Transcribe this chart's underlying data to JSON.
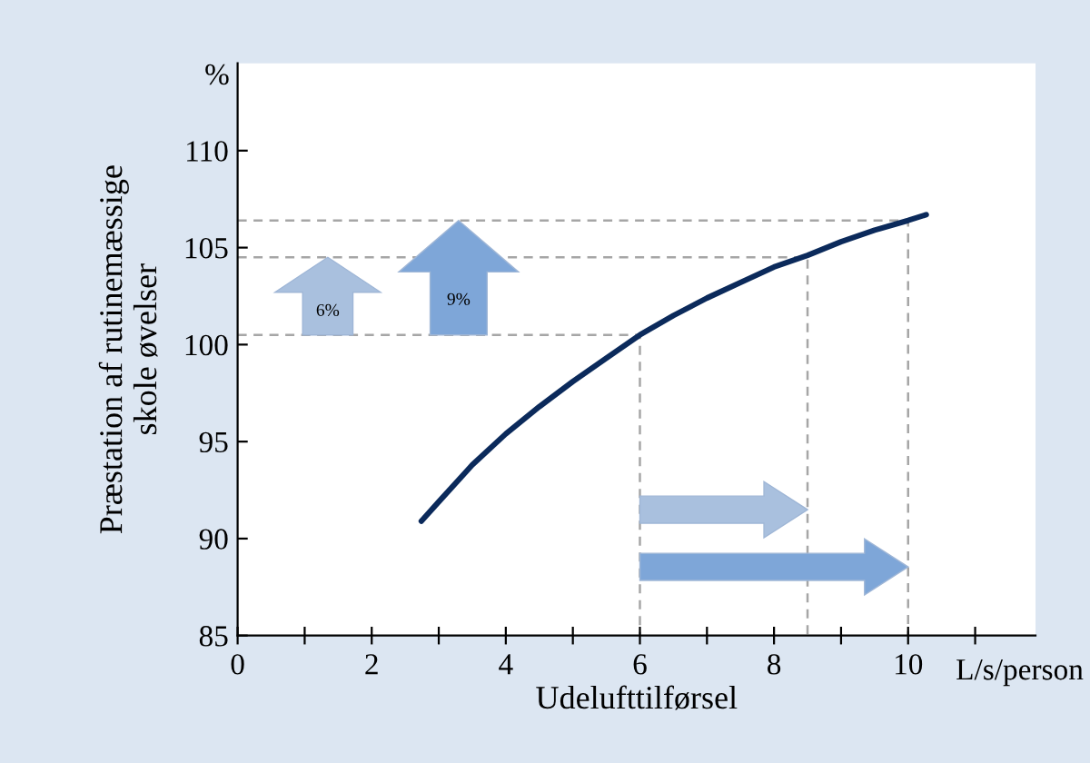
{
  "chart_data": {
    "type": "line",
    "xlabel": "Udelufttilførsel",
    "ylabel": "Præstation af rutinemæssige\nskole øvelser",
    "annotations": [
      "%",
      "L/s/person",
      "6%",
      "9%"
    ],
    "xlim": [
      0,
      11.9
    ],
    "ylim": [
      85,
      114.5
    ],
    "xticks": [
      0,
      {
        "value": 1,
        "label": null
      },
      2,
      {
        "value": 3,
        "label": null
      },
      4,
      {
        "value": 5,
        "label": null
      },
      6,
      {
        "value": 7,
        "label": null
      },
      8,
      {
        "value": 9,
        "label": null
      },
      10,
      {
        "value": 11,
        "label": null
      }
    ],
    "yticks": [
      85,
      90,
      95,
      100,
      105,
      110
    ],
    "grid": false,
    "marker": "none",
    "series": [
      {
        "color": "#0b2a5b",
        "line_style": "solid",
        "x": [
          2.74,
          3,
          3.5,
          4,
          4.5,
          5,
          5.5,
          6,
          6.5,
          7,
          7.5,
          8,
          8.5,
          9,
          9.5,
          10,
          10.27
        ],
        "values": [
          90.9,
          91.9,
          93.8,
          95.4,
          96.8,
          98.1,
          99.3,
          100.5,
          101.5,
          102.4,
          103.2,
          104.0,
          104.6,
          105.3,
          105.9,
          106.4,
          106.7
        ]
      },
      {
        "color": "#a6a6a6",
        "line_style": "dashed",
        "x": [
          0,
          6,
          6
        ],
        "values": [
          100.5,
          100.5,
          85
        ]
      },
      {
        "color": "#a6a6a6",
        "line_style": "dashed",
        "x": [
          0,
          8.5,
          8.5
        ],
        "values": [
          104.5,
          104.5,
          85
        ]
      },
      {
        "color": "#a6a6a6",
        "line_style": "dashed",
        "x": [
          0,
          10,
          10
        ],
        "values": [
          106.4,
          106.4,
          85
        ]
      }
    ]
  }
}
